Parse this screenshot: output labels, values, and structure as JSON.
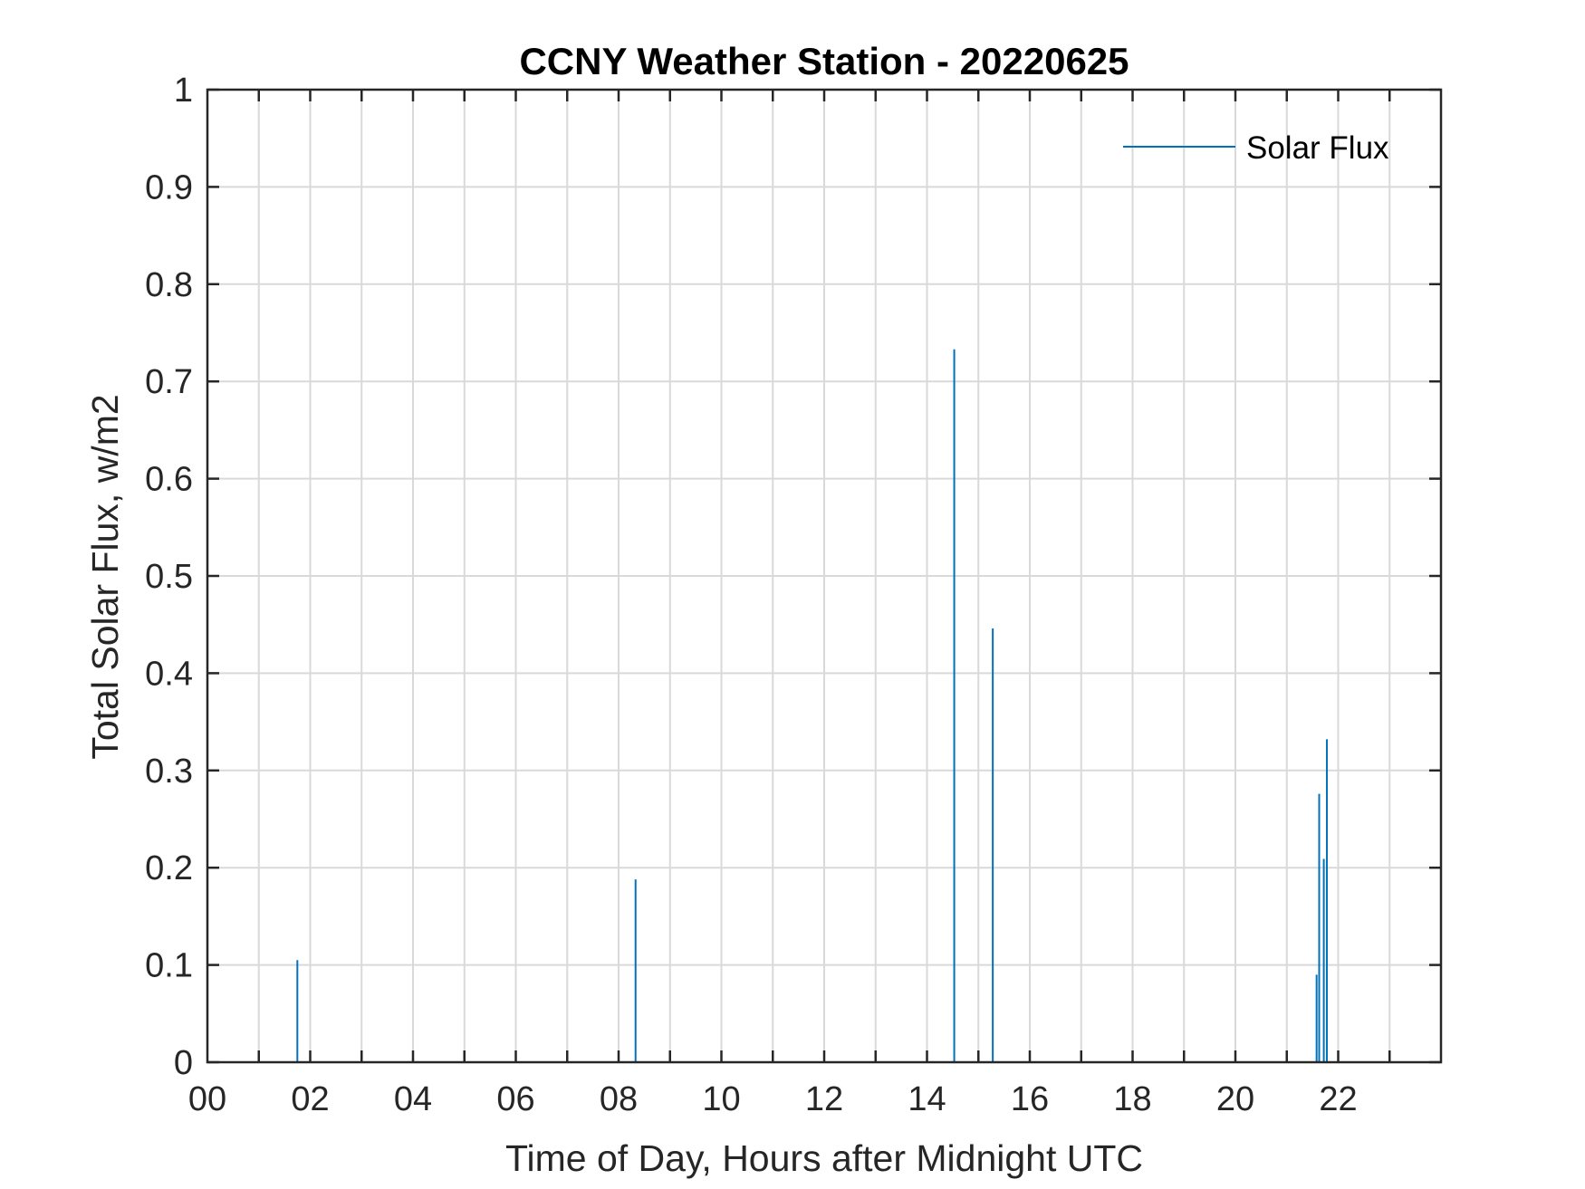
{
  "chart_data": {
    "type": "line",
    "title": "CCNY Weather Station - 20220625",
    "xlabel": "Time of Day, Hours after Midnight UTC",
    "ylabel": "Total Solar Flux, w/m2",
    "xlim": [
      0,
      24
    ],
    "ylim": [
      0,
      1
    ],
    "x_ticks": [
      0,
      2,
      4,
      6,
      8,
      10,
      12,
      14,
      16,
      18,
      20,
      22
    ],
    "x_tick_labels": [
      "00",
      "02",
      "04",
      "06",
      "08",
      "10",
      "12",
      "14",
      "16",
      "18",
      "20",
      "22"
    ],
    "y_ticks": [
      0,
      0.1,
      0.2,
      0.3,
      0.4,
      0.5,
      0.6,
      0.7,
      0.8,
      0.9,
      1
    ],
    "y_tick_labels": [
      "0",
      "0.1",
      "0.2",
      "0.3",
      "0.4",
      "0.5",
      "0.6",
      "0.7",
      "0.8",
      "0.9",
      "1"
    ],
    "grid": true,
    "legend_position": "top-right",
    "series": [
      {
        "name": "Solar Flux",
        "color": "#0072BD",
        "spikes": [
          {
            "x": 1.75,
            "y": 0.105
          },
          {
            "x": 8.33,
            "y": 0.188
          },
          {
            "x": 14.53,
            "y": 0.733
          },
          {
            "x": 15.28,
            "y": 0.446
          },
          {
            "x": 21.58,
            "y": 0.09
          },
          {
            "x": 21.63,
            "y": 0.276
          },
          {
            "x": 21.72,
            "y": 0.209
          },
          {
            "x": 21.78,
            "y": 0.332
          }
        ]
      }
    ]
  }
}
